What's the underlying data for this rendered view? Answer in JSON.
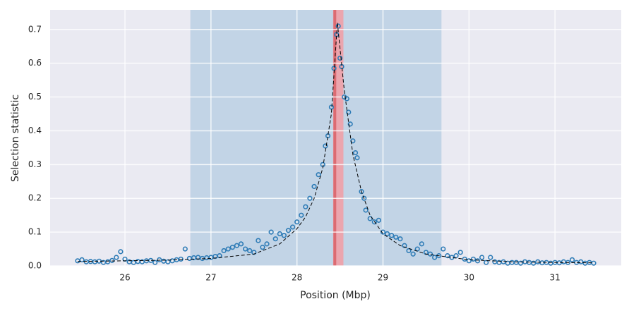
{
  "chart_data": {
    "type": "scatter",
    "xlabel": "Position (Mbp)",
    "ylabel": "Selection statistic",
    "xlim": [
      25.13,
      31.77
    ],
    "ylim": [
      0,
      0.758
    ],
    "xticks": [
      26,
      27,
      28,
      29,
      30,
      31
    ],
    "yticks": [
      {
        "value": 0,
        "label": "0.0"
      },
      0.1,
      0.2,
      0.3,
      0.4,
      0.5,
      0.6,
      0.7
    ],
    "grid": true,
    "background": "#eaeaf2",
    "spans": [
      {
        "xmin": 26.76,
        "xmax": 29.68,
        "color": "#c2d4e6"
      },
      {
        "xmin": 28.42,
        "xmax": 28.54,
        "color": "#eba5ae"
      }
    ],
    "vlines": [
      {
        "x": 28.44,
        "color": "#dc6b72"
      }
    ],
    "series": [
      {
        "style": "markers",
        "color": "#2d7bb6",
        "x": [
          25.45,
          25.5,
          25.55,
          25.6,
          25.65,
          25.7,
          25.75,
          25.8,
          25.85,
          25.9,
          25.95,
          26.0,
          26.05,
          26.1,
          26.15,
          26.2,
          26.25,
          26.3,
          26.35,
          26.4,
          26.45,
          26.5,
          26.55,
          26.6,
          26.65,
          26.7,
          26.75,
          26.8,
          26.85,
          26.9,
          26.95,
          27.0,
          27.05,
          27.1,
          27.15,
          27.2,
          27.25,
          27.3,
          27.35,
          27.4,
          27.45,
          27.5,
          27.55,
          27.6,
          27.65,
          27.7,
          27.75,
          27.8,
          27.85,
          27.9,
          27.95,
          28.0,
          28.05,
          28.1,
          28.15,
          28.2,
          28.25,
          28.3,
          28.33,
          28.36,
          28.4,
          28.43,
          28.46,
          28.48,
          28.5,
          28.52,
          28.55,
          28.58,
          28.6,
          28.62,
          28.65,
          28.68,
          28.7,
          28.75,
          28.78,
          28.8,
          28.85,
          28.9,
          28.95,
          29.0,
          29.05,
          29.1,
          29.15,
          29.2,
          29.25,
          29.3,
          29.35,
          29.4,
          29.45,
          29.5,
          29.55,
          29.6,
          29.65,
          29.7,
          29.75,
          29.8,
          29.85,
          29.9,
          29.95,
          30.0,
          30.05,
          30.1,
          30.15,
          30.2,
          30.25,
          30.3,
          30.35,
          30.4,
          30.45,
          30.5,
          30.55,
          30.6,
          30.65,
          30.7,
          30.75,
          30.8,
          30.85,
          30.9,
          30.95,
          31.0,
          31.05,
          31.1,
          31.15,
          31.2,
          31.25,
          31.3,
          31.35,
          31.4,
          31.45
        ],
        "values": [
          0.015,
          0.018,
          0.012,
          0.013,
          0.012,
          0.014,
          0.01,
          0.012,
          0.016,
          0.025,
          0.042,
          0.02,
          0.012,
          0.01,
          0.013,
          0.012,
          0.015,
          0.016,
          0.01,
          0.018,
          0.014,
          0.012,
          0.015,
          0.018,
          0.02,
          0.05,
          0.022,
          0.024,
          0.025,
          0.022,
          0.024,
          0.025,
          0.028,
          0.03,
          0.045,
          0.05,
          0.055,
          0.06,
          0.065,
          0.05,
          0.045,
          0.04,
          0.075,
          0.055,
          0.065,
          0.1,
          0.08,
          0.095,
          0.09,
          0.105,
          0.115,
          0.13,
          0.15,
          0.175,
          0.2,
          0.235,
          0.27,
          0.3,
          0.355,
          0.385,
          0.47,
          0.585,
          0.685,
          0.71,
          0.615,
          0.59,
          0.5,
          0.495,
          0.455,
          0.42,
          0.37,
          0.335,
          0.32,
          0.22,
          0.2,
          0.165,
          0.14,
          0.13,
          0.135,
          0.1,
          0.095,
          0.09,
          0.085,
          0.08,
          0.06,
          0.045,
          0.035,
          0.05,
          0.065,
          0.04,
          0.035,
          0.025,
          0.03,
          0.05,
          0.03,
          0.025,
          0.03,
          0.04,
          0.02,
          0.015,
          0.02,
          0.015,
          0.025,
          0.01,
          0.025,
          0.012,
          0.01,
          0.012,
          0.008,
          0.01,
          0.01,
          0.008,
          0.012,
          0.01,
          0.008,
          0.012,
          0.009,
          0.01,
          0.008,
          0.01,
          0.009,
          0.012,
          0.01,
          0.018,
          0.01,
          0.012,
          0.008,
          0.01,
          0.008
        ]
      },
      {
        "style": "dashed-line",
        "color": "#000000",
        "x": [
          25.45,
          26.0,
          26.5,
          27.0,
          27.5,
          27.8,
          28.0,
          28.1,
          28.2,
          28.3,
          28.4,
          28.47,
          28.55,
          28.65,
          28.75,
          28.85,
          29.0,
          29.2,
          29.5,
          30.0,
          30.5,
          31.0,
          31.45
        ],
        "values": [
          0.013,
          0.015,
          0.017,
          0.022,
          0.035,
          0.065,
          0.11,
          0.145,
          0.2,
          0.29,
          0.45,
          0.72,
          0.52,
          0.33,
          0.22,
          0.15,
          0.095,
          0.06,
          0.035,
          0.018,
          0.012,
          0.01,
          0.009
        ]
      }
    ]
  }
}
